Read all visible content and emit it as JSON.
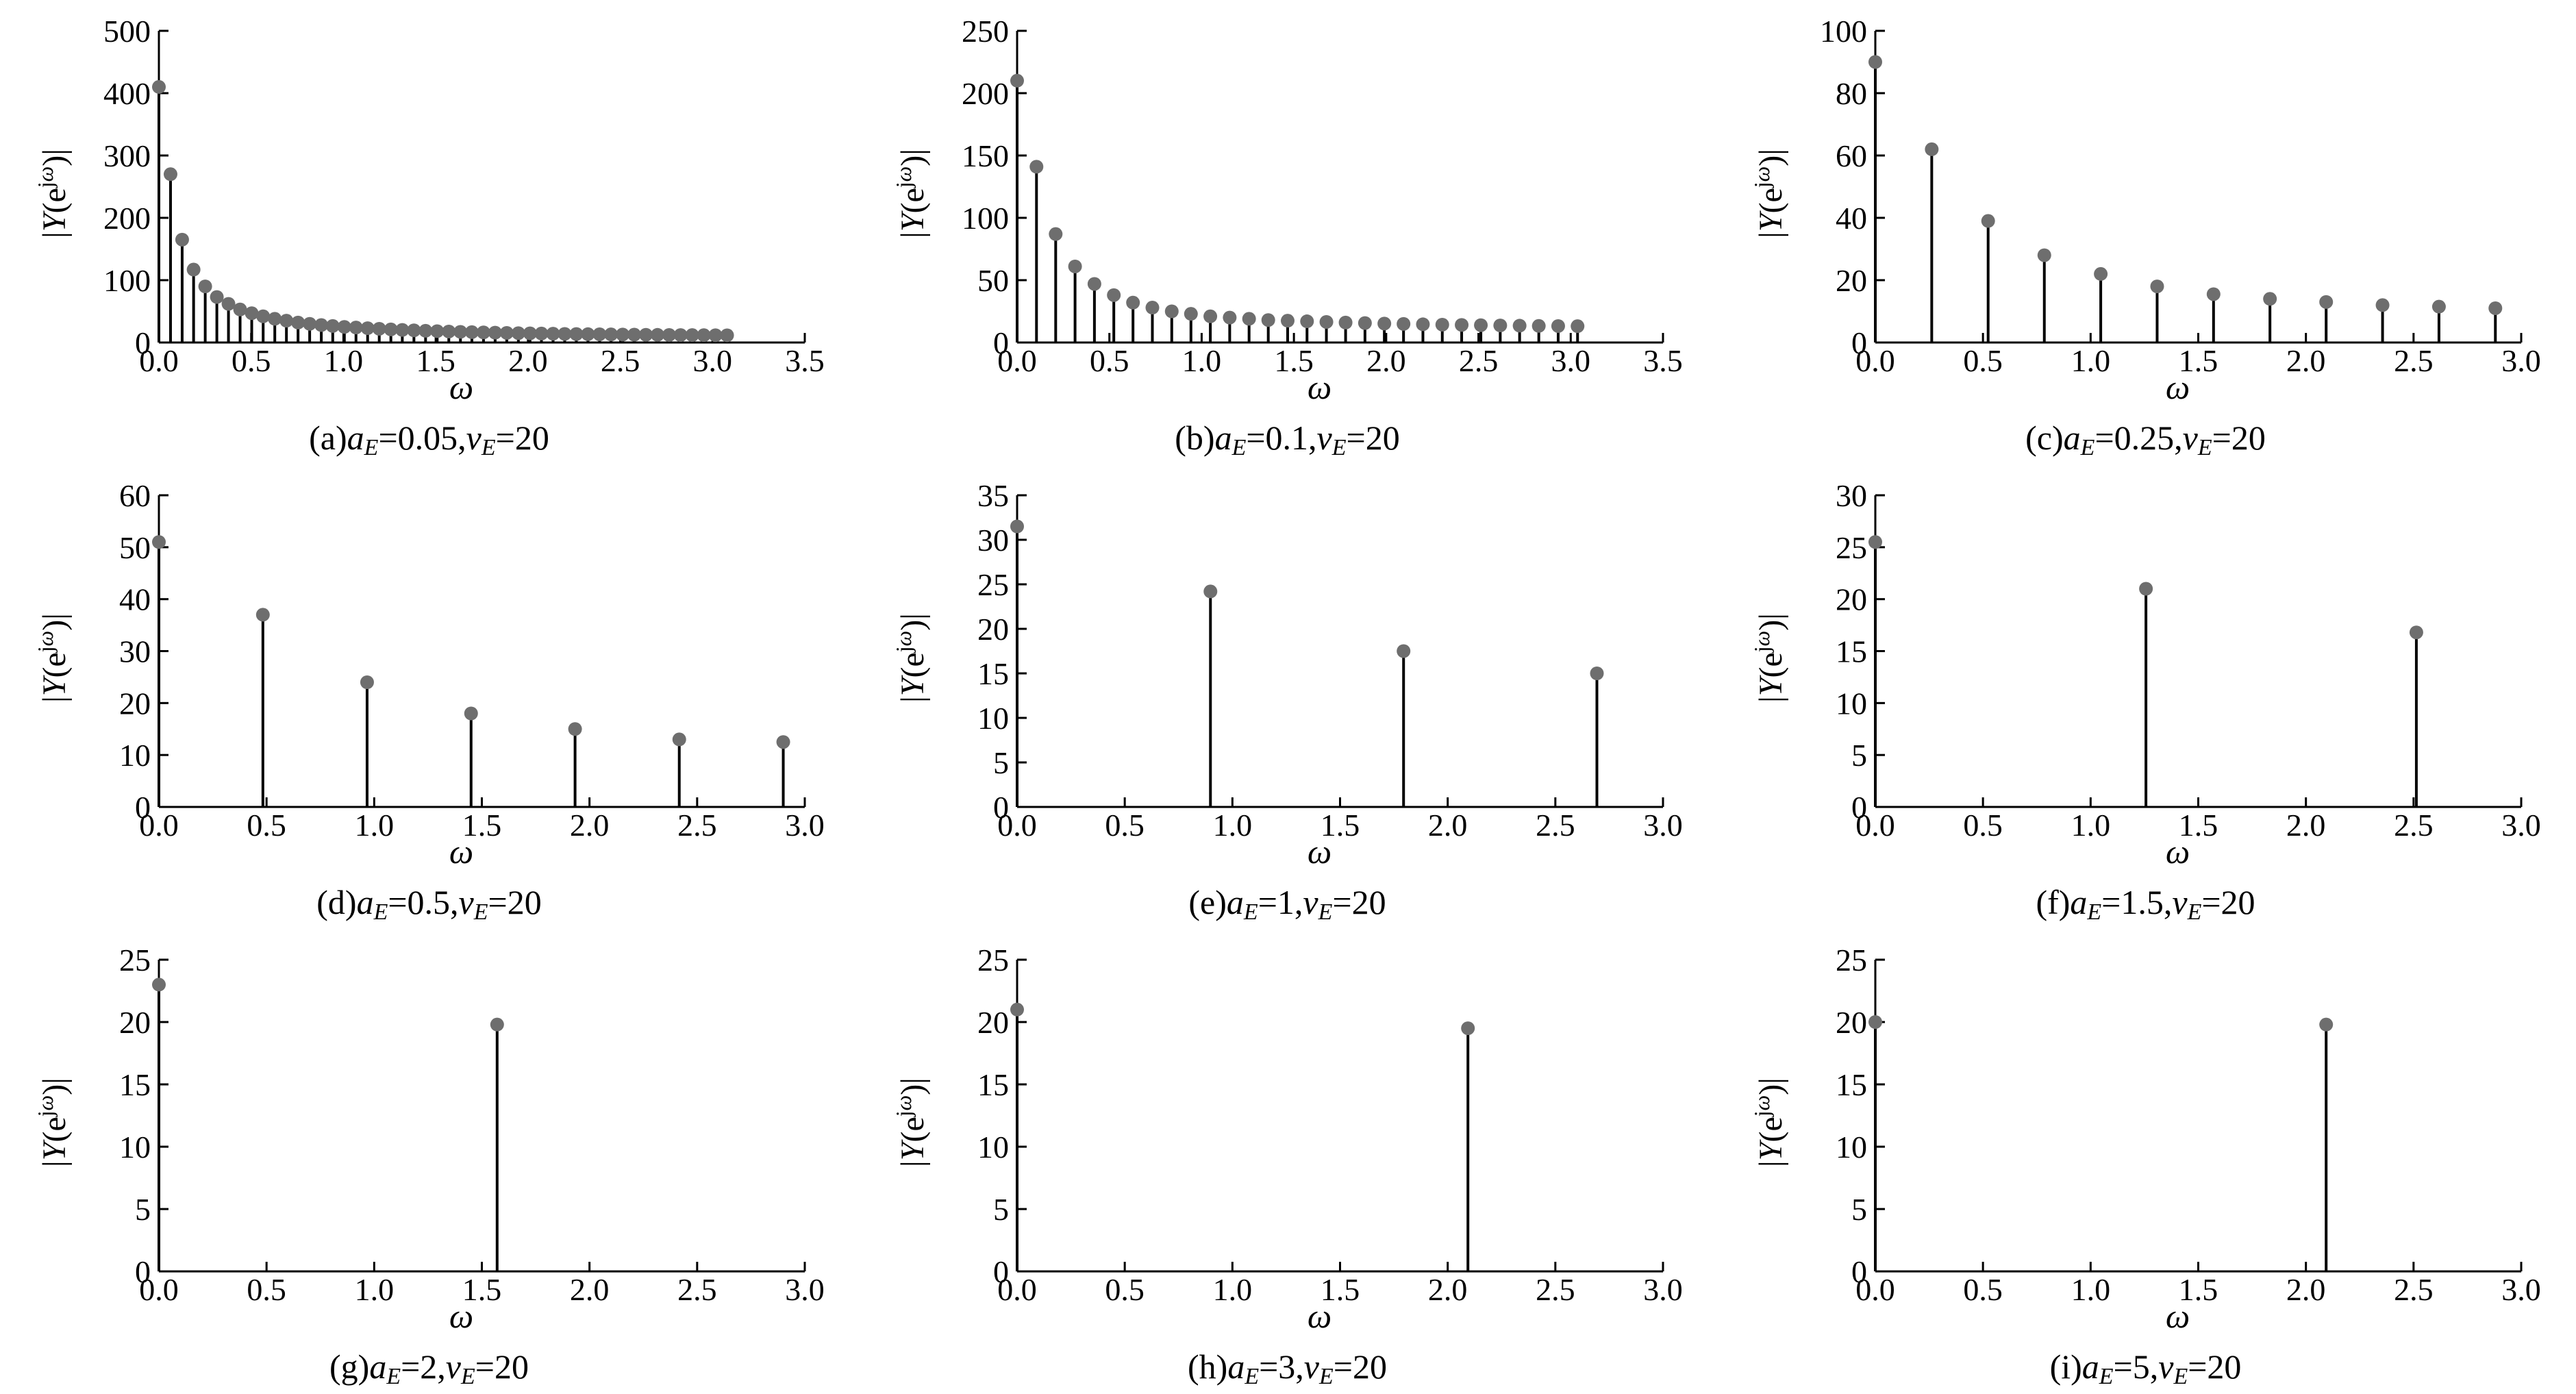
{
  "chart_data": [
    {
      "id": "a",
      "type": "stem",
      "caption_prefix": "(a)",
      "a_E": "0.05",
      "v_E": "20",
      "xlabel": "ω",
      "ylabel": "|Y(e^{jω})|",
      "xlim": [
        0,
        3.5
      ],
      "ylim": [
        0,
        500
      ],
      "xticks": [
        "0.0",
        "0.5",
        "1.0",
        "1.5",
        "2.0",
        "2.5",
        "3.0",
        "3.5"
      ],
      "yticks": [
        "0",
        "100",
        "200",
        "300",
        "400",
        "500"
      ],
      "x": [
        0.0,
        0.063,
        0.126,
        0.188,
        0.251,
        0.314,
        0.377,
        0.44,
        0.503,
        0.565,
        0.628,
        0.691,
        0.754,
        0.817,
        0.88,
        0.942,
        1.005,
        1.068,
        1.131,
        1.194,
        1.257,
        1.319,
        1.382,
        1.445,
        1.508,
        1.571,
        1.634,
        1.696,
        1.759,
        1.822,
        1.885,
        1.948,
        2.011,
        2.073,
        2.136,
        2.199,
        2.262,
        2.325,
        2.388,
        2.45,
        2.513,
        2.576,
        2.639,
        2.702,
        2.765,
        2.827,
        2.89,
        2.953,
        3.016,
        3.079
      ],
      "y": [
        410,
        270,
        165,
        117,
        90,
        73,
        62,
        53,
        47,
        42,
        38,
        35,
        32,
        30,
        28,
        26.5,
        25,
        24,
        23,
        22,
        21,
        20.2,
        19.5,
        18.8,
        18.2,
        17.6,
        17.1,
        16.6,
        16.2,
        15.8,
        15.4,
        15,
        14.7,
        14.4,
        14.1,
        13.8,
        13.6,
        13.4,
        13.2,
        13,
        12.8,
        12.6,
        12.4,
        12.3,
        12.1,
        12,
        11.9,
        11.8,
        11.7,
        11.6
      ]
    },
    {
      "id": "b",
      "type": "stem",
      "caption_prefix": "(b)",
      "a_E": "0.1",
      "v_E": "20",
      "xlabel": "ω",
      "ylabel": "|Y(e^{jω})|",
      "xlim": [
        0,
        3.5
      ],
      "ylim": [
        0,
        250
      ],
      "xticks": [
        "0.0",
        "0.5",
        "1.0",
        "1.5",
        "2.0",
        "2.5",
        "3.0",
        "3.5"
      ],
      "yticks": [
        "0",
        "50",
        "100",
        "150",
        "200",
        "250"
      ],
      "x": [
        0.0,
        0.105,
        0.209,
        0.314,
        0.419,
        0.524,
        0.628,
        0.733,
        0.838,
        0.942,
        1.047,
        1.152,
        1.257,
        1.361,
        1.466,
        1.571,
        1.676,
        1.78,
        1.885,
        1.99,
        2.094,
        2.199,
        2.304,
        2.409,
        2.513,
        2.618,
        2.723,
        2.827,
        2.932,
        3.037
      ],
      "y": [
        210,
        141,
        87,
        61,
        47,
        38,
        32,
        28,
        25,
        23,
        21,
        20,
        19,
        18,
        17.5,
        17,
        16.5,
        16,
        15.6,
        15.2,
        14.9,
        14.6,
        14.3,
        14.1,
        13.9,
        13.7,
        13.5,
        13.3,
        13.2,
        13.1
      ]
    },
    {
      "id": "c",
      "type": "stem",
      "caption_prefix": "(c)",
      "a_E": "0.25",
      "v_E": "20",
      "xlabel": "ω",
      "ylabel": "|Y(e^{jω})|",
      "xlim": [
        0,
        3.0
      ],
      "ylim": [
        0,
        100
      ],
      "xticks": [
        "0.0",
        "0.5",
        "1.0",
        "1.5",
        "2.0",
        "2.5",
        "3.0"
      ],
      "yticks": [
        "0",
        "20",
        "40",
        "60",
        "80",
        "100"
      ],
      "x": [
        0.0,
        0.262,
        0.524,
        0.785,
        1.047,
        1.309,
        1.571,
        1.833,
        2.094,
        2.356,
        2.618,
        2.88
      ],
      "y": [
        90,
        62,
        39,
        28,
        22,
        18,
        15.5,
        14,
        13,
        12,
        11.5,
        11
      ]
    },
    {
      "id": "d",
      "type": "stem",
      "caption_prefix": "(d)",
      "a_E": "0.5",
      "v_E": "20",
      "xlabel": "ω",
      "ylabel": "|Y(e^{jω})|",
      "xlim": [
        0,
        3.0
      ],
      "ylim": [
        0,
        60
      ],
      "xticks": [
        "0.0",
        "0.5",
        "1.0",
        "1.5",
        "2.0",
        "2.5",
        "3.0"
      ],
      "yticks": [
        "0",
        "10",
        "20",
        "30",
        "40",
        "50",
        "60"
      ],
      "x": [
        0.0,
        0.483,
        0.967,
        1.45,
        1.933,
        2.417,
        2.9
      ],
      "y": [
        51,
        37,
        24,
        18,
        15,
        13,
        12.5
      ]
    },
    {
      "id": "e",
      "type": "stem",
      "caption_prefix": "(e)",
      "a_E": "1",
      "v_E": "20",
      "xlabel": "ω",
      "ylabel": "|Y(e^{jω})|",
      "xlim": [
        0,
        3.0
      ],
      "ylim": [
        0,
        35
      ],
      "xticks": [
        "0.0",
        "0.5",
        "1.0",
        "1.5",
        "2.0",
        "2.5",
        "3.0"
      ],
      "yticks": [
        "0",
        "5",
        "10",
        "15",
        "20",
        "25",
        "30",
        "35"
      ],
      "x": [
        0.0,
        0.898,
        1.795,
        2.693
      ],
      "y": [
        31.5,
        24.2,
        17.5,
        15
      ]
    },
    {
      "id": "f",
      "type": "stem",
      "caption_prefix": "(f)",
      "a_E": "1.5",
      "v_E": "20",
      "xlabel": "ω",
      "ylabel": "|Y(e^{jω})|",
      "xlim": [
        0,
        3.0
      ],
      "ylim": [
        0,
        30
      ],
      "xticks": [
        "0.0",
        "0.5",
        "1.0",
        "1.5",
        "2.0",
        "2.5",
        "3.0"
      ],
      "yticks": [
        "0",
        "5",
        "10",
        "15",
        "20",
        "25",
        "30"
      ],
      "x": [
        0.0,
        1.257,
        2.513
      ],
      "y": [
        25.5,
        21,
        16.8
      ]
    },
    {
      "id": "g",
      "type": "stem",
      "caption_prefix": "(g)",
      "a_E": "2",
      "v_E": "20",
      "xlabel": "ω",
      "ylabel": "|Y(e^{jω})|",
      "xlim": [
        0,
        3.0
      ],
      "ylim": [
        0,
        25
      ],
      "xticks": [
        "0.0",
        "0.5",
        "1.0",
        "1.5",
        "2.0",
        "2.5",
        "3.0"
      ],
      "yticks": [
        "0",
        "5",
        "10",
        "15",
        "20",
        "25"
      ],
      "x": [
        0.0,
        1.571
      ],
      "y": [
        23,
        19.8
      ]
    },
    {
      "id": "h",
      "type": "stem",
      "caption_prefix": "(h)",
      "a_E": "3",
      "v_E": "20",
      "xlabel": "ω",
      "ylabel": "|Y(e^{jω})|",
      "xlim": [
        0,
        3.0
      ],
      "ylim": [
        0,
        25
      ],
      "xticks": [
        "0.0",
        "0.5",
        "1.0",
        "1.5",
        "2.0",
        "2.5",
        "3.0"
      ],
      "yticks": [
        "0",
        "5",
        "10",
        "15",
        "20",
        "25"
      ],
      "x": [
        0.0,
        2.094
      ],
      "y": [
        21,
        19.5
      ]
    },
    {
      "id": "i",
      "type": "stem",
      "caption_prefix": "(i)",
      "a_E": "5",
      "v_E": "20",
      "xlabel": "ω",
      "ylabel": "|Y(e^{jω})|",
      "xlim": [
        0,
        3.0
      ],
      "ylim": [
        0,
        25
      ],
      "xticks": [
        "0.0",
        "0.5",
        "1.0",
        "1.5",
        "2.0",
        "2.5",
        "3.0"
      ],
      "yticks": [
        "0",
        "5",
        "10",
        "15",
        "20",
        "25"
      ],
      "x": [
        0.0,
        2.094
      ],
      "y": [
        20,
        19.8
      ]
    }
  ],
  "style": {
    "stem_color": "#000000",
    "marker_color": "#6e6e6e",
    "axis_color": "#000000"
  }
}
